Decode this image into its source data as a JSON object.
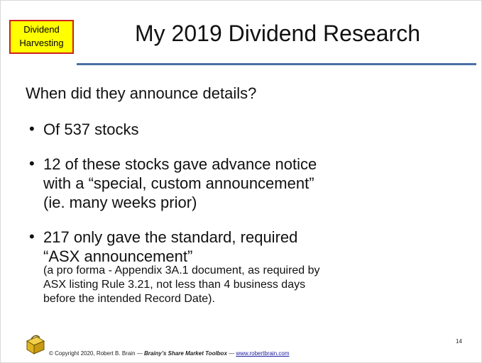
{
  "badge": {
    "lines": [
      "Dividend",
      "Harvesting"
    ]
  },
  "header": {
    "title": "My 2019 Dividend Research"
  },
  "intro": "When did they announce details?",
  "bullets": [
    {
      "lines": [
        "Of 537 stocks"
      ]
    },
    {
      "lines": [
        "12 of these stocks gave advance notice",
        "with a “special, custom announcement”",
        "(ie. many weeks prior)"
      ]
    },
    {
      "lines": [
        "217 only gave the standard, required",
        "“ASX announcement”"
      ],
      "note": [
        "(a pro forma - Appendix 3A.1 document, as required by",
        "ASX listing Rule 3.21, not less than 4 business days",
        "before the intended Record Date)."
      ]
    }
  ],
  "footer": {
    "copyright": "© Copyright 2020, Robert B. Brain — ",
    "brand": "Brainy’s Share Market Toolbox",
    "separator": " — ",
    "link": "www.robertbrain.com",
    "page": "14"
  }
}
